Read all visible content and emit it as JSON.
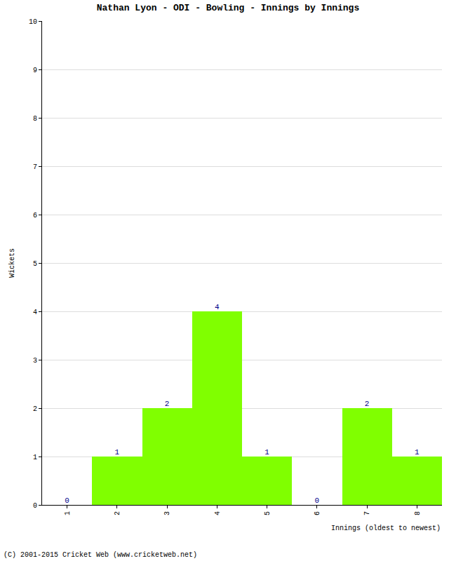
{
  "chart_data": {
    "type": "bar",
    "title": "Nathan Lyon - ODI - Bowling - Innings by Innings",
    "x_label": "Innings (oldest to newest)",
    "y_label": "Wickets",
    "categories": [
      "1",
      "2",
      "3",
      "4",
      "5",
      "6",
      "7",
      "8"
    ],
    "values": [
      0,
      1,
      2,
      4,
      1,
      0,
      2,
      1
    ],
    "color": "#80ff00",
    "ylim": [
      0,
      10
    ],
    "yticks": [
      0,
      1,
      2,
      3,
      4,
      5,
      6,
      7,
      8,
      9,
      10
    ],
    "grid": true,
    "data_labels": true,
    "annotations": [
      "(C) 2001-2015 Cricket Web (www.cricketweb.net)"
    ]
  }
}
